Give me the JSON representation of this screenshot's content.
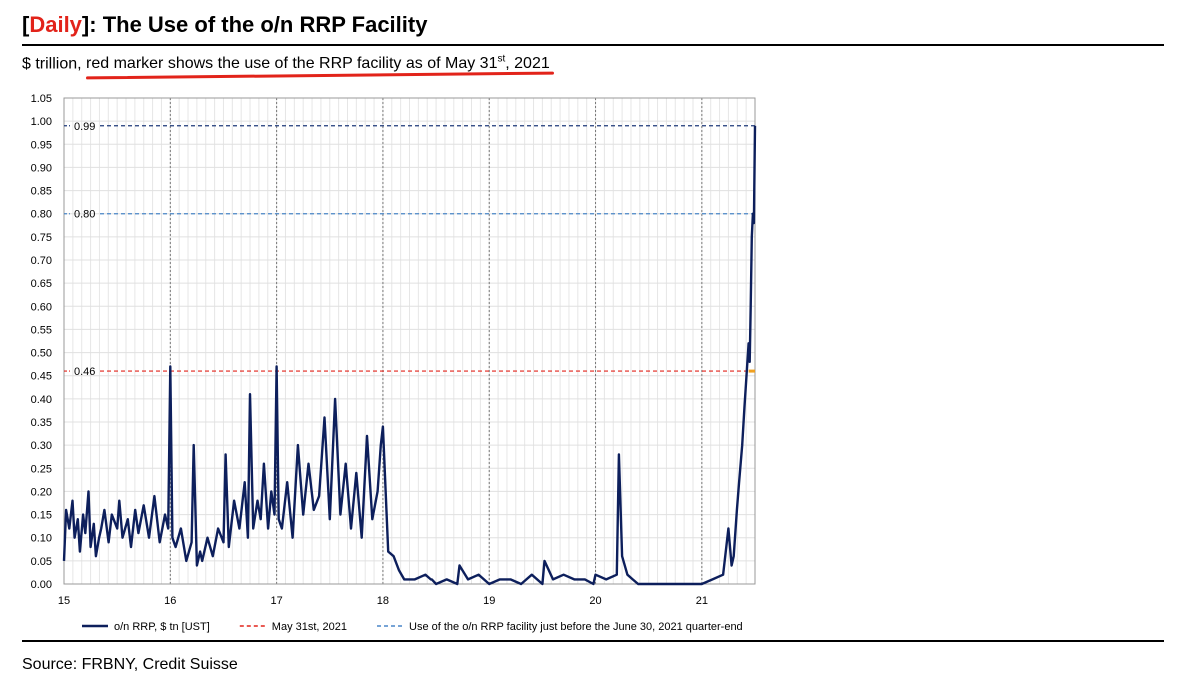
{
  "header": {
    "title_tag": "Daily",
    "title_text": ": The Use of the o/n RRP Facility",
    "subtitle_prefix": "$ trillion, ",
    "subtitle_highlight": "red marker shows the use of the RRP facility as of May 31",
    "subtitle_sup": "st",
    "subtitle_suffix": ", 2021"
  },
  "footer": {
    "source": "Source: FRBNY, Credit Suisse"
  },
  "colors": {
    "series": "#0d1f5c",
    "red": "#e2231a",
    "blue": "#4a86c8",
    "navy_ref": "#1f3a7a",
    "orange": "#f0a020"
  },
  "chart_data": {
    "type": "line",
    "x_ticks": [
      "15",
      "16",
      "17",
      "18",
      "19",
      "20",
      "21"
    ],
    "y_ticks": [
      "0.00",
      "0.05",
      "0.10",
      "0.15",
      "0.20",
      "0.25",
      "0.30",
      "0.35",
      "0.40",
      "0.45",
      "0.50",
      "0.55",
      "0.60",
      "0.65",
      "0.70",
      "0.75",
      "0.80",
      "0.85",
      "0.90",
      "0.95",
      "1.00",
      "1.05"
    ],
    "xlim": [
      2015,
      2021.5
    ],
    "ylim": [
      0,
      1.05
    ],
    "grid": true,
    "legend_position": "bottom",
    "reference_lines": [
      {
        "label": "0.99",
        "value": 0.99,
        "color": "#1f3a7a"
      },
      {
        "label": "0.80",
        "value": 0.8,
        "color": "#4a86c8"
      },
      {
        "label": "0.46",
        "value": 0.46,
        "color": "#e2231a"
      }
    ],
    "legend": [
      {
        "label": "o/n RRP, $ tn [UST]",
        "style": "solid",
        "color": "#0d1f5c"
      },
      {
        "label": "May 31st, 2021",
        "style": "dashed",
        "color": "#e2231a"
      },
      {
        "label": "Use of the o/n RRP facility just before the June 30, 2021 quarter-end",
        "style": "dashed",
        "color": "#4a86c8"
      }
    ],
    "series": [
      {
        "x": [
          2015.0,
          2015.02,
          2015.05,
          2015.08,
          2015.1,
          2015.13,
          2015.15,
          2015.18,
          2015.2,
          2015.23,
          2015.25,
          2015.28,
          2015.3,
          2015.33,
          2015.35,
          2015.38,
          2015.42,
          2015.45,
          2015.5,
          2015.52,
          2015.55,
          2015.6,
          2015.63,
          2015.67,
          2015.7,
          2015.75,
          2015.8,
          2015.85,
          2015.9,
          2015.95,
          2015.98,
          2016.0,
          2016.02,
          2016.05,
          2016.1,
          2016.15,
          2016.2,
          2016.22,
          2016.25,
          2016.28,
          2016.3,
          2016.35,
          2016.4,
          2016.45,
          2016.5,
          2016.52,
          2016.55,
          2016.6,
          2016.65,
          2016.7,
          2016.73,
          2016.75,
          2016.78,
          2016.82,
          2016.85,
          2016.88,
          2016.92,
          2016.95,
          2016.98,
          2017.0,
          2017.02,
          2017.05,
          2017.1,
          2017.15,
          2017.2,
          2017.25,
          2017.3,
          2017.35,
          2017.4,
          2017.45,
          2017.5,
          2017.55,
          2017.6,
          2017.65,
          2017.7,
          2017.75,
          2017.8,
          2017.85,
          2017.9,
          2017.95,
          2017.98,
          2018.0,
          2018.05,
          2018.1,
          2018.15,
          2018.2,
          2018.3,
          2018.4,
          2018.45,
          2018.46,
          2018.5,
          2018.6,
          2018.7,
          2018.72,
          2018.8,
          2018.9,
          2019.0,
          2019.1,
          2019.2,
          2019.3,
          2019.4,
          2019.5,
          2019.52,
          2019.6,
          2019.7,
          2019.8,
          2019.9,
          2019.98,
          2020.0,
          2020.1,
          2020.2,
          2020.22,
          2020.25,
          2020.3,
          2020.35,
          2020.4,
          2020.5,
          2020.6,
          2020.7,
          2020.8,
          2020.9,
          2021.0,
          2021.1,
          2021.2,
          2021.25,
          2021.28,
          2021.3,
          2021.33,
          2021.35,
          2021.38,
          2021.4,
          2021.42,
          2021.44,
          2021.45,
          2021.46,
          2021.47,
          2021.48,
          2021.49,
          2021.5
        ],
        "y": [
          0.05,
          0.16,
          0.12,
          0.18,
          0.1,
          0.14,
          0.07,
          0.15,
          0.11,
          0.2,
          0.08,
          0.13,
          0.06,
          0.1,
          0.12,
          0.16,
          0.09,
          0.15,
          0.12,
          0.18,
          0.1,
          0.14,
          0.08,
          0.16,
          0.11,
          0.17,
          0.1,
          0.19,
          0.09,
          0.15,
          0.12,
          0.47,
          0.1,
          0.08,
          0.12,
          0.05,
          0.09,
          0.3,
          0.04,
          0.07,
          0.05,
          0.1,
          0.06,
          0.12,
          0.09,
          0.28,
          0.08,
          0.18,
          0.12,
          0.22,
          0.1,
          0.41,
          0.12,
          0.18,
          0.14,
          0.26,
          0.12,
          0.2,
          0.15,
          0.47,
          0.14,
          0.12,
          0.22,
          0.1,
          0.3,
          0.15,
          0.26,
          0.16,
          0.19,
          0.36,
          0.14,
          0.4,
          0.15,
          0.26,
          0.12,
          0.24,
          0.1,
          0.32,
          0.14,
          0.2,
          0.3,
          0.34,
          0.07,
          0.06,
          0.03,
          0.01,
          0.01,
          0.02,
          0.01,
          0.01,
          0.0,
          0.01,
          0.0,
          0.04,
          0.01,
          0.02,
          0.0,
          0.01,
          0.01,
          0.0,
          0.02,
          0.0,
          0.05,
          0.01,
          0.02,
          0.01,
          0.01,
          0.0,
          0.02,
          0.01,
          0.02,
          0.28,
          0.06,
          0.02,
          0.01,
          0.0,
          0.0,
          0.0,
          0.0,
          0.0,
          0.0,
          0.0,
          0.01,
          0.02,
          0.12,
          0.04,
          0.06,
          0.16,
          0.22,
          0.3,
          0.38,
          0.45,
          0.52,
          0.48,
          0.6,
          0.75,
          0.8,
          0.78,
          0.99
        ]
      }
    ]
  }
}
